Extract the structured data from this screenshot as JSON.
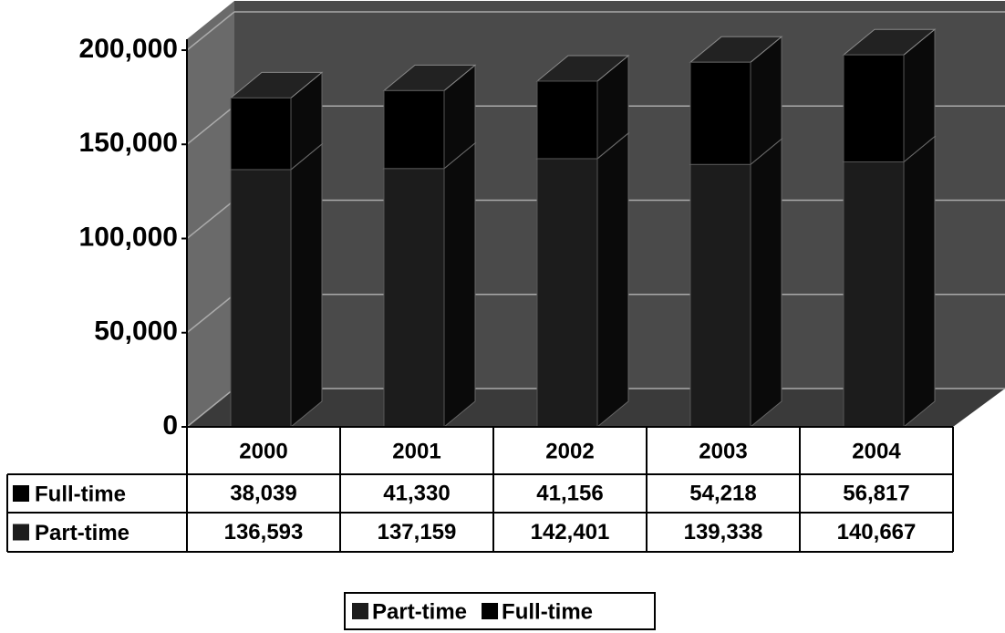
{
  "chart_data": {
    "type": "bar",
    "stacked": true,
    "categories": [
      "2000",
      "2001",
      "2002",
      "2003",
      "2004"
    ],
    "series": [
      {
        "name": "Part-time",
        "color": "#1c1c1c",
        "values": [
          136593,
          137159,
          142401,
          139338,
          140667
        ],
        "value_labels": [
          "136,593",
          "137,159",
          "142,401",
          "139,338",
          "140,667"
        ]
      },
      {
        "name": "Full-time",
        "color": "#000000",
        "values": [
          38039,
          41330,
          41156,
          54218,
          56817
        ],
        "value_labels": [
          "38,039",
          "41,330",
          "41,156",
          "54,218",
          "56,817"
        ]
      }
    ],
    "ylim": [
      0,
      200000
    ],
    "yticks": [
      0,
      {
        "value": 50000,
        "label": "50,000"
      },
      {
        "value": 100000,
        "label": "100,000"
      },
      {
        "value": 150000,
        "label": "150,000"
      },
      {
        "value": 200000,
        "label": "200,000"
      }
    ],
    "grid": true,
    "legend": "bottom"
  }
}
